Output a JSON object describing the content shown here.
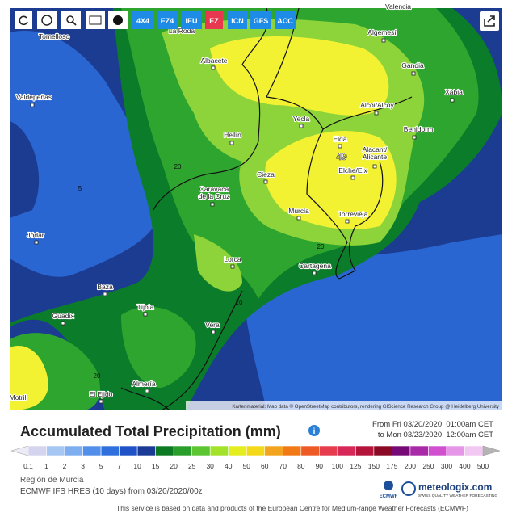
{
  "toolbar": {
    "buttons": [
      "4X4",
      "EZ4",
      "IEU",
      "EZ",
      "ICN",
      "GFS",
      "ACC"
    ]
  },
  "map": {
    "places": [
      {
        "lines": [
          "Valencia"
        ]
      },
      {
        "lines": [
          "Tomelloso"
        ]
      },
      {
        "lines": [
          "La Roda"
        ]
      },
      {
        "lines": [
          "Algemesí"
        ]
      },
      {
        "lines": [
          "Gandia"
        ]
      },
      {
        "lines": [
          "Albacete"
        ]
      },
      {
        "lines": [
          "Valdepeñas"
        ]
      },
      {
        "lines": [
          "Alcoi/Alcoy"
        ]
      },
      {
        "lines": [
          "Xàbia"
        ]
      },
      {
        "lines": [
          "Yecla"
        ]
      },
      {
        "lines": [
          "Benidorm"
        ]
      },
      {
        "lines": [
          "Hellín"
        ]
      },
      {
        "lines": [
          "Elda"
        ]
      },
      {
        "lines": [
          "Alacant/",
          "Alicante"
        ]
      },
      {
        "lines": [
          "Elche/Elx"
        ]
      },
      {
        "lines": [
          "Cieza"
        ]
      },
      {
        "lines": [
          "Caravaca",
          "de la Cruz"
        ]
      },
      {
        "lines": [
          "Murcia"
        ]
      },
      {
        "lines": [
          "Torrevieja"
        ]
      },
      {
        "lines": [
          "Jódar"
        ]
      },
      {
        "lines": [
          "Lorca"
        ]
      },
      {
        "lines": [
          "Cartagena"
        ]
      },
      {
        "lines": [
          "Baza"
        ]
      },
      {
        "lines": [
          "Guadix"
        ]
      },
      {
        "lines": [
          "Tíjola"
        ]
      },
      {
        "lines": [
          "Vera"
        ]
      },
      {
        "lines": [
          "Almería"
        ]
      },
      {
        "lines": [
          "El Ejido"
        ]
      },
      {
        "lines": [
          "Motril"
        ]
      }
    ],
    "contour_labels": [
      "20",
      "20",
      "20",
      "20",
      "5"
    ],
    "maximum": "49",
    "attribution": "Kartenmaterial: Map data © OpenStreetMap contributors, rendering GIScience Research Group @ Heidelberg University"
  },
  "legend": {
    "title": "Accumulated Total Precipitation (mm)",
    "period_from": "From Fri 03/20/2020, 01:00am CET",
    "period_to": "to Mon 03/23/2020, 12:00am CET",
    "scale_labels": [
      "0.1",
      "1",
      "2",
      "3",
      "5",
      "7",
      "10",
      "15",
      "20",
      "25",
      "30",
      "40",
      "50",
      "60",
      "70",
      "80",
      "90",
      "100",
      "125",
      "150",
      "175",
      "200",
      "250",
      "300",
      "400",
      "500"
    ],
    "colors": [
      "#d4d4ee",
      "#a6c6f4",
      "#7eaef0",
      "#528fea",
      "#2f70de",
      "#1f52c6",
      "#1b3a96",
      "#0c7a22",
      "#2a9e2a",
      "#5cc632",
      "#a2e228",
      "#e4ee1e",
      "#f4d81a",
      "#f2a41e",
      "#f27a16",
      "#ee5a26",
      "#e63c4e",
      "#d82858",
      "#b4143a",
      "#8a0a26",
      "#760a76",
      "#a82aa8",
      "#d050d0",
      "#e696e6",
      "#f2c8f2"
    ],
    "region": "Región de Murcia",
    "model": "ECMWF IFS HRES (10 days) from 03/20/2020/00z"
  },
  "logos": {
    "ecmwf": "ECMWF",
    "brand": "meteologix.com",
    "tagline": "SWISS QUALITY WEATHER FORECASTING"
  },
  "footer": "This service is based on data and products of the European Centre for Medium-range Weather Forecasts (ECMWF)"
}
